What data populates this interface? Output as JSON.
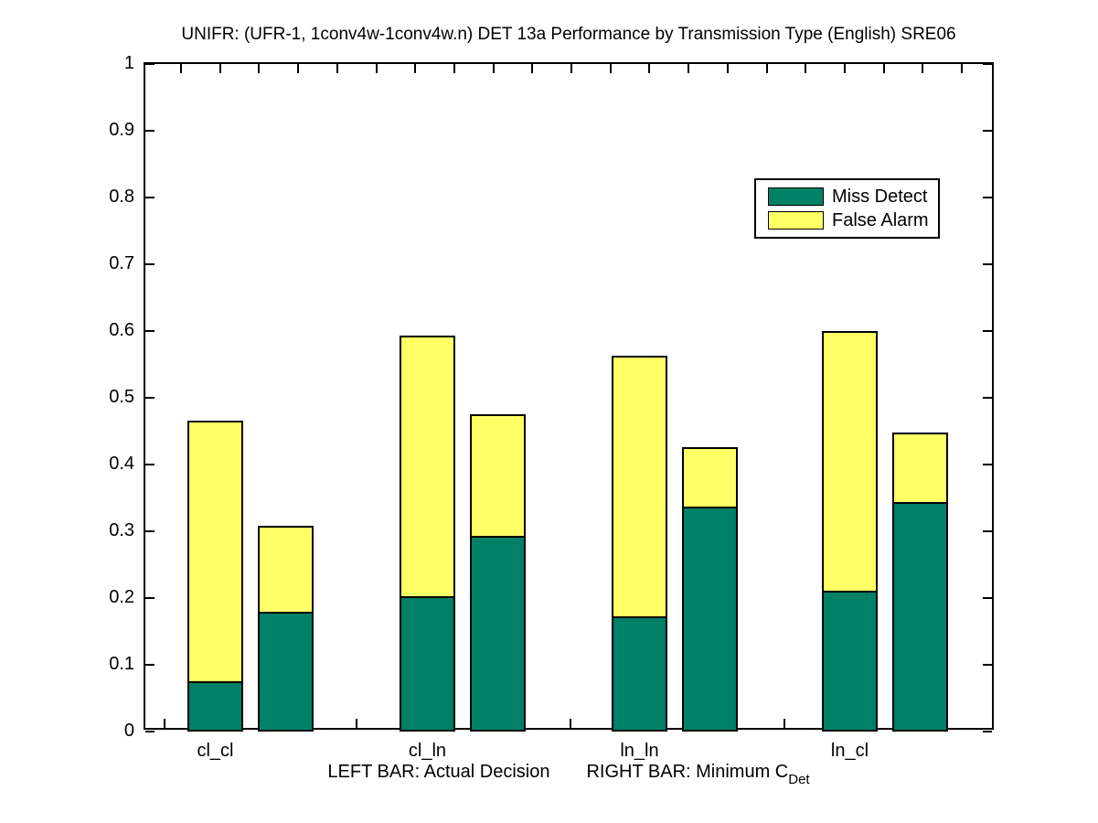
{
  "title": "UNIFR: (UFR-1, 1conv4w-1conv4w.n) DET 13a Performance by Transmission Type (English) SRE06",
  "colors": {
    "miss_detect": "#008066",
    "false_alarm": "#FFFF66",
    "axis": "#000000",
    "background": "#FFFFFF"
  },
  "legend": {
    "items": [
      {
        "label": "Miss Detect",
        "color": "#008066"
      },
      {
        "label": "False Alarm",
        "color": "#FFFF66"
      }
    ]
  },
  "xlabel": {
    "left_text": "LEFT BAR: Actual Decision",
    "right_text": "RIGHT BAR: Minimum C",
    "subscript": "Det"
  },
  "chart_data": {
    "type": "bar",
    "stacked": true,
    "title": "UNIFR: (UFR-1, 1conv4w-1conv4w.n) DET 13a Performance by Transmission Type (English) SRE06",
    "categories": [
      "cl_cl",
      "cl_ln",
      "ln_ln",
      "ln_cl"
    ],
    "bar_pair_meaning": {
      "left": "Actual Decision",
      "right": "Minimum C_Det"
    },
    "series": [
      {
        "name": "Miss Detect",
        "color": "#008066",
        "actual_decision": [
          0.076,
          0.203,
          0.173,
          0.211
        ],
        "minimum_cdet": [
          0.179,
          0.293,
          0.337,
          0.344
        ]
      },
      {
        "name": "False Alarm",
        "color": "#FFFF66",
        "actual_decision": [
          0.39,
          0.39,
          0.39,
          0.389
        ],
        "minimum_cdet": [
          0.129,
          0.182,
          0.089,
          0.104
        ]
      }
    ],
    "stack_totals": {
      "actual_decision": [
        0.466,
        0.593,
        0.563,
        0.6
      ],
      "minimum_cdet": [
        0.308,
        0.475,
        0.426,
        0.448
      ]
    },
    "ylim": [
      0,
      1
    ],
    "yticks": [
      0,
      0.1,
      0.2,
      0.3,
      0.4,
      0.5,
      0.6,
      0.7,
      0.8,
      0.9,
      1
    ],
    "grid": false,
    "legend_position": "upper-right-inside"
  }
}
